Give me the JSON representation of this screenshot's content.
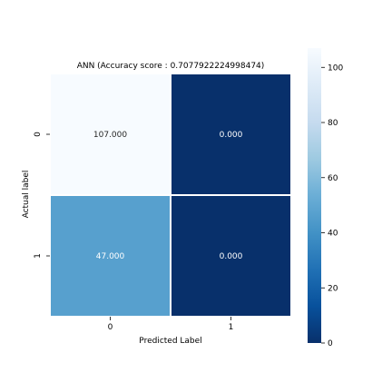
{
  "chart_data": {
    "type": "heatmap",
    "title": "ANN (Accuracy score : 0.7077922224998474)",
    "xlabel": "Predicted Label",
    "ylabel": "Actual label",
    "x_categories": [
      "0",
      "1"
    ],
    "y_categories": [
      "0",
      "1"
    ],
    "values": [
      [
        107,
        0
      ],
      [
        47,
        0
      ]
    ],
    "cell_labels": [
      [
        "107.000",
        "0.000"
      ],
      [
        "47.000",
        "0.000"
      ]
    ],
    "colormap": "Blues_r",
    "colorbar": {
      "range": [
        0,
        107
      ],
      "ticks": [
        0,
        20,
        40,
        60,
        80,
        100
      ],
      "tick_labels": [
        "0",
        "20",
        "40",
        "60",
        "80",
        "100"
      ]
    },
    "colors": {
      "low": "#08306b",
      "high": "#f7fbff",
      "light_text": "#ffffff",
      "dark_text": "#262626",
      "cell_border": "#ffffff"
    }
  }
}
